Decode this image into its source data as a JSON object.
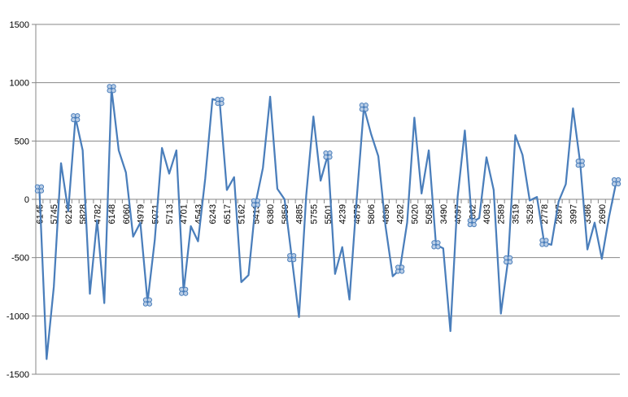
{
  "chart_data": {
    "type": "line",
    "categories": [
      "6145",
      null,
      "5745",
      null,
      "6210",
      null,
      "5828",
      null,
      "4782",
      null,
      "6148",
      null,
      "6060",
      null,
      "4979",
      null,
      "5071",
      null,
      "5713",
      null,
      "4701",
      null,
      "4543",
      null,
      "6243",
      null,
      "6517",
      null,
      "5162",
      null,
      "5413",
      null,
      "6380",
      null,
      "5859",
      null,
      "4885",
      null,
      "5755",
      null,
      "5501",
      null,
      "4239",
      null,
      "4879",
      null,
      "5806",
      null,
      "4896",
      null,
      "4262",
      null,
      "5020",
      null,
      "5058",
      null,
      "3490",
      null,
      "4097",
      null,
      "4062",
      null,
      "4083",
      null,
      "2589",
      null,
      "3519",
      null,
      "3528",
      null,
      "2778",
      null,
      "2897",
      null,
      "3997",
      null,
      "3386",
      null,
      "2690",
      null,
      null
    ],
    "series": [
      {
        "color": "#4a7ebb",
        "values": [
          90,
          -1370,
          -750,
          310,
          -100,
          700,
          420,
          -810,
          -180,
          -890,
          950,
          420,
          230,
          -320,
          -200,
          -880,
          -350,
          440,
          220,
          420,
          -790,
          -230,
          -360,
          180,
          860,
          840,
          80,
          190,
          -710,
          -650,
          -30,
          270,
          880,
          90,
          0,
          -500,
          -1010,
          30,
          710,
          160,
          380,
          -640,
          -410,
          -860,
          0,
          790,
          560,
          370,
          -230,
          -660,
          -600,
          -200,
          700,
          50,
          420,
          -390,
          -420,
          -1130,
          20,
          590,
          -200,
          -160,
          360,
          80,
          -980,
          -520,
          550,
          380,
          -10,
          20,
          -370,
          -390,
          -20,
          130,
          780,
          310,
          -430,
          -200,
          -510,
          -150,
          150
        ]
      }
    ],
    "ylim": [
      -1500,
      1500
    ],
    "yticks": [
      -1500,
      -1000,
      -500,
      0,
      500,
      1000,
      1500
    ],
    "grid": true
  }
}
